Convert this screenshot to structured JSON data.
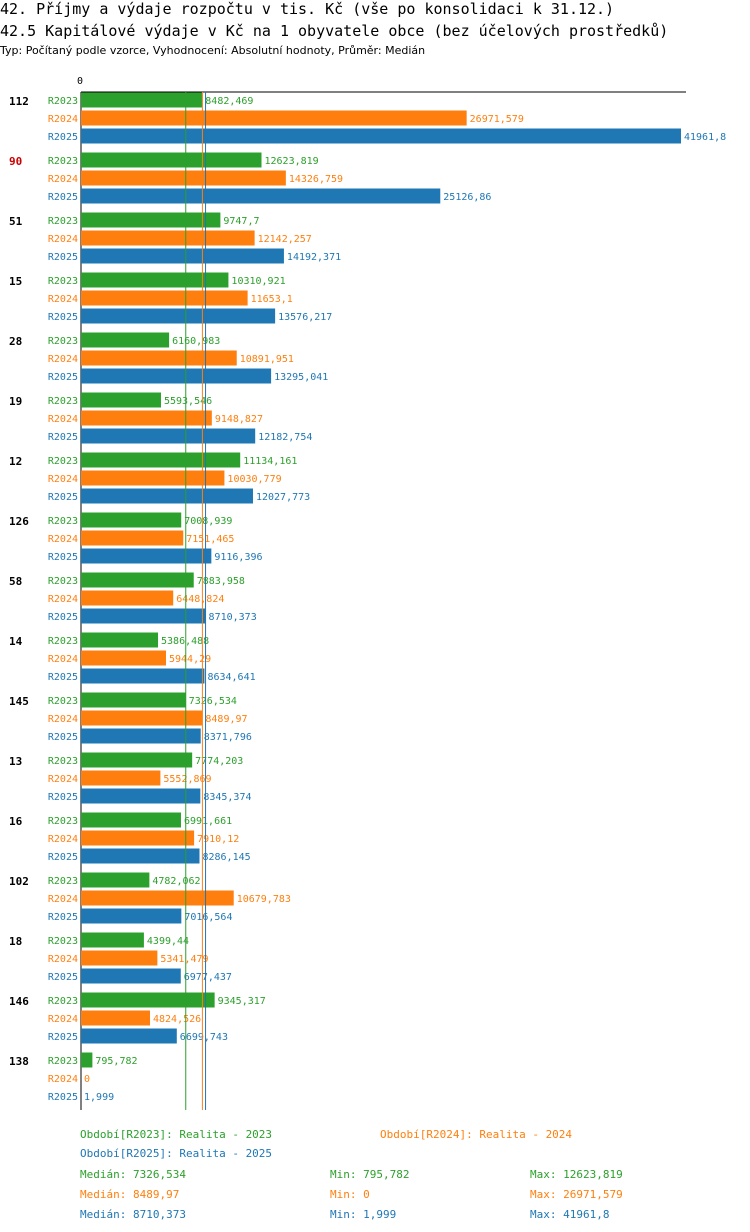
{
  "title": "42. Příjmy a výdaje rozpočtu v tis. Kč (vše po konsolidaci k 31.12.)",
  "subtitle": "42.5 Kapitálové výdaje v Kč na 1 obyvatele obce (bez účelových prostředků)",
  "type_line": "Typ: Počítaný podle vzorce, Vyhodnocení: Absolutní hodnoty, Průměr: Medián",
  "colors": {
    "R2023": "#2ca02c",
    "R2024": "#ff7f0e",
    "R2025": "#1f77b4",
    "highlight": "#cc0000"
  },
  "chart_data": {
    "type": "bar",
    "orientation": "horizontal",
    "axis_zero_label": "0",
    "xlim": [
      0,
      41961.8
    ],
    "highlighted_category": "90",
    "categories": [
      "112",
      "90",
      "51",
      "15",
      "28",
      "19",
      "12",
      "126",
      "58",
      "14",
      "145",
      "13",
      "16",
      "102",
      "18",
      "146",
      "138"
    ],
    "series": [
      {
        "name": "R2023",
        "labels": [
          "8482,469",
          "12623,819",
          "9747,7",
          "10310,921",
          "6160,983",
          "5593,546",
          "11134,161",
          "7008,939",
          "7883,958",
          "5386,488",
          "7326,534",
          "7774,203",
          "6991,661",
          "4782,062",
          "4399,44",
          "9345,317",
          "795,782"
        ],
        "values": [
          8482.469,
          12623.819,
          9747.7,
          10310.921,
          6160.983,
          5593.546,
          11134.161,
          7008.939,
          7883.958,
          5386.488,
          7326.534,
          7774.203,
          6991.661,
          4782.062,
          4399.44,
          9345.317,
          795.782
        ]
      },
      {
        "name": "R2024",
        "labels": [
          "26971,579",
          "14326,759",
          "12142,257",
          "11653,1",
          "10891,951",
          "9148,827",
          "10030,779",
          "7151,465",
          "6448,824",
          "5944,29",
          "8489,97",
          "5552,869",
          "7910,12",
          "10679,783",
          "5341,479",
          "4824,526",
          "0"
        ],
        "values": [
          26971.579,
          14326.759,
          12142.257,
          11653.1,
          10891.951,
          9148.827,
          10030.779,
          7151.465,
          6448.824,
          5944.29,
          8489.97,
          5552.869,
          7910.12,
          10679.783,
          5341.479,
          4824.526,
          0
        ]
      },
      {
        "name": "R2025",
        "labels": [
          "41961,8",
          "25126,86",
          "14192,371",
          "13576,217",
          "13295,041",
          "12182,754",
          "12027,773",
          "9116,396",
          "8710,373",
          "8634,641",
          "8371,796",
          "8345,374",
          "8286,145",
          "7016,564",
          "6977,437",
          "6699,743",
          "1,999"
        ],
        "values": [
          41961.8,
          25126.86,
          14192.371,
          13576.217,
          13295.041,
          12182.754,
          12027.773,
          9116.396,
          8710.373,
          8634.641,
          8371.796,
          8345.374,
          8286.145,
          7016.564,
          6977.437,
          6699.743,
          1.999
        ]
      }
    ],
    "medians": {
      "R2023": 7326.534,
      "R2024": 8489.97,
      "R2025": 8710.373
    }
  },
  "legend": {
    "r2023": "Období[R2023]: Realita - 2023",
    "r2024": "Období[R2024]: Realita - 2024",
    "r2025": "Období[R2025]: Realita - 2025"
  },
  "stats": {
    "r2023": {
      "median": "Medián: 7326,534",
      "min": "Min: 795,782",
      "max": "Max: 12623,819"
    },
    "r2024": {
      "median": "Medián: 8489,97",
      "min": "Min: 0",
      "max": "Max: 26971,579"
    },
    "r2025": {
      "median": "Medián: 8710,373",
      "min": "Min: 1,999",
      "max": "Max: 41961,8"
    }
  }
}
